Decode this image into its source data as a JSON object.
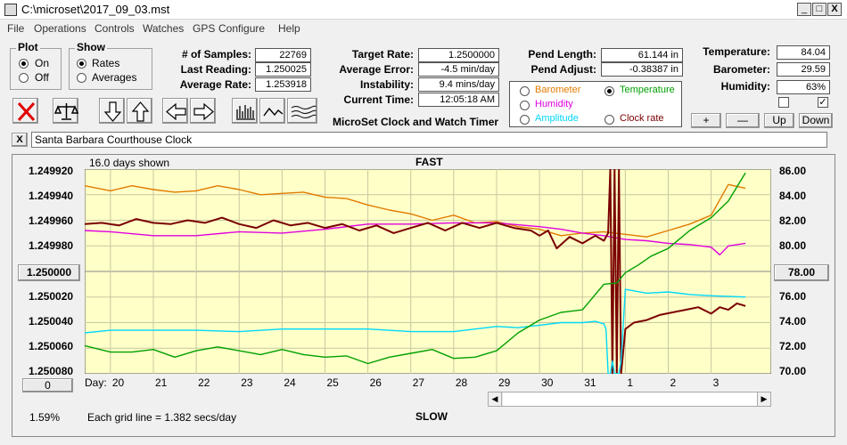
{
  "window": {
    "title": "C:\\microset\\2017_09_03.mst",
    "min": "_",
    "max": "□",
    "close": "X"
  },
  "menu": [
    "File",
    "Operations",
    "Controls",
    "Watches",
    "GPS",
    "Configure",
    "Help"
  ],
  "plot_group": {
    "title": "Plot",
    "options": [
      "On",
      "Off"
    ],
    "selected": "On"
  },
  "show_group": {
    "title": "Show",
    "options": [
      "Rates",
      "Averages"
    ],
    "selected": "Rates"
  },
  "stats_left": [
    {
      "label": "# of Samples:",
      "value": "22769"
    },
    {
      "label": "Last Reading:",
      "value": "1.250025"
    },
    {
      "label": "Average Rate:",
      "value": "1.253918"
    }
  ],
  "stats_mid": [
    {
      "label": "Target Rate:",
      "value": "1.2500000"
    },
    {
      "label": "Average Error:",
      "value": "-4.5 min/day"
    },
    {
      "label": "Instability:",
      "value": "9.4 mins/day"
    },
    {
      "label": "Current Time:",
      "value": "12:05:18 AM"
    }
  ],
  "pendulum": [
    {
      "label": "Pend Length:",
      "value": "61.144 in"
    },
    {
      "label": "Pend Adjust:",
      "value": "-0.38387 in"
    }
  ],
  "environment": [
    {
      "label": "Temperature:",
      "value": "84.04"
    },
    {
      "label": "Barometer:",
      "value": "29.59"
    },
    {
      "label": "Humidity:",
      "value": "63%"
    }
  ],
  "env_checks": [
    false,
    true
  ],
  "env_buttons": [
    "+",
    "—",
    "Up",
    "Down"
  ],
  "caption": "MicroSet Clock and Watch Timer",
  "legend": {
    "items": [
      {
        "label": "Barometer",
        "color": "#e07b00",
        "selected": false
      },
      {
        "label": "Temperature",
        "color": "#00a000",
        "selected": true
      },
      {
        "label": "Humidity",
        "color": "#e000e0",
        "selected": false
      },
      {
        "label": "Clock rate",
        "color": "#7a0000",
        "selected": false
      },
      {
        "label": "Amplitude",
        "color": "#00d8f8",
        "selected": false
      }
    ]
  },
  "toolbar_icons": [
    "stop-icon",
    "balance-scale-icon",
    "arrow-down-icon",
    "arrow-up-icon",
    "arrow-left-icon",
    "arrow-right-icon",
    "bar-graph-icon",
    "wave-icon",
    "multi-wave-icon"
  ],
  "clock_name": {
    "close": "X",
    "value": "Santa Barbara Courthouse Clock"
  },
  "chart_data": {
    "type": "line",
    "days_shown": "16.0 days shown",
    "top_label": "FAST",
    "bottom_label": "SLOW",
    "grid_note": "Each grid line = 1.382 secs/day",
    "left_button": "1.250000",
    "right_button": "78.00",
    "corner_button": "0",
    "percent": "1.59%",
    "x_title": "Day:",
    "x_labels": [
      "20",
      "21",
      "22",
      "23",
      "24",
      "25",
      "26",
      "27",
      "28",
      "29",
      "30",
      "31",
      "1",
      "2",
      "3"
    ],
    "y_left_labels": [
      "1.249920",
      "1.249940",
      "1.249960",
      "1.249980",
      "1.250020",
      "1.250040",
      "1.250060",
      "1.250080"
    ],
    "y_left_range": [
      1.24992,
      1.25008
    ],
    "y_right_labels": [
      "86.00",
      "84.00",
      "82.00",
      "80.00",
      "76.00",
      "74.00",
      "72.00",
      "70.00"
    ],
    "y_right_range": [
      70,
      86
    ],
    "x_range": [
      19.4,
      35.4
    ],
    "grid": true,
    "series": [
      {
        "name": "Barometer",
        "color": "#e07b00",
        "width": 1.4,
        "x": [
          19.4,
          20,
          20.5,
          21,
          21.5,
          22,
          22.5,
          23,
          23.5,
          24,
          24.5,
          25,
          25.5,
          26,
          26.5,
          27,
          27.5,
          28,
          28.5,
          29,
          29.5,
          30,
          30.5,
          31,
          31.5,
          32,
          32.5,
          33,
          33.5,
          34,
          34.4,
          34.8
        ],
        "y": [
          1.249933,
          1.249937,
          1.249933,
          1.249936,
          1.249938,
          1.249937,
          1.249933,
          1.249936,
          1.24994,
          1.249939,
          1.249938,
          1.249942,
          1.249943,
          1.249948,
          1.249952,
          1.249955,
          1.24996,
          1.249956,
          1.249962,
          1.249961,
          1.249965,
          1.249967,
          1.249972,
          1.24997,
          1.249969,
          1.249971,
          1.249973,
          1.249968,
          1.249963,
          1.249956,
          1.249932,
          1.249935
        ]
      },
      {
        "name": "Humidity",
        "color": "#e000e0",
        "width": 1.4,
        "x": [
          19.4,
          20,
          21,
          22,
          23,
          24,
          25,
          26,
          27,
          28,
          29,
          30,
          30.5,
          31,
          31.5,
          32,
          32.5,
          33,
          33.5,
          34,
          34.2,
          34.4,
          34.8
        ],
        "y": [
          1.249968,
          1.249969,
          1.249972,
          1.249972,
          1.249969,
          1.24997,
          1.249967,
          1.249963,
          1.249963,
          1.249962,
          1.249962,
          1.249965,
          1.249967,
          1.24997,
          1.249972,
          1.249975,
          1.249976,
          1.249978,
          1.249979,
          1.249981,
          1.249987,
          1.24998,
          1.249978
        ]
      },
      {
        "name": "Clock rate",
        "color": "#7a0000",
        "width": 2,
        "x": [
          19.4,
          19.8,
          20.2,
          20.6,
          21,
          21.4,
          21.8,
          22.2,
          22.6,
          23,
          23.4,
          23.8,
          24.2,
          24.6,
          25,
          25.4,
          25.8,
          26.2,
          26.6,
          27,
          27.4,
          27.8,
          28.2,
          28.6,
          29,
          29.4,
          29.8,
          30,
          30.2,
          30.4,
          30.7,
          31,
          31.3,
          31.5,
          31.6,
          31.65,
          31.7,
          31.75,
          31.8,
          31.85,
          31.9,
          32,
          32.2,
          32.5,
          32.8,
          33.1,
          33.4,
          33.7,
          34,
          34.2,
          34.4,
          34.6,
          34.8
        ],
        "y": [
          1.249963,
          1.249962,
          1.249964,
          1.249959,
          1.249962,
          1.249963,
          1.24996,
          1.249962,
          1.249958,
          1.249963,
          1.249966,
          1.24996,
          1.249964,
          1.249962,
          1.249966,
          1.249963,
          1.249968,
          1.249964,
          1.24997,
          1.249966,
          1.249962,
          1.249968,
          1.249962,
          1.249966,
          1.249962,
          1.249966,
          1.249968,
          1.249972,
          1.249968,
          1.249982,
          1.249973,
          1.249978,
          1.249972,
          1.249976,
          1.24997,
          1.24992,
          1.25008,
          1.24992,
          1.25008,
          1.24992,
          1.25008,
          1.250045,
          1.25004,
          1.250038,
          1.250034,
          1.250032,
          1.25003,
          1.250028,
          1.250033,
          1.250028,
          1.25003,
          1.250025,
          1.250027
        ]
      },
      {
        "name": "Amplitude",
        "color": "#00d8f8",
        "width": 1.4,
        "x": [
          19.4,
          20,
          21,
          22,
          23,
          24,
          25,
          26,
          27,
          28,
          29,
          29.5,
          30,
          30.5,
          31,
          31.3,
          31.5,
          31.55,
          31.6,
          31.65,
          31.7,
          31.75,
          31.85,
          31.9,
          32,
          32.5,
          33,
          33.5,
          34,
          34.8
        ],
        "y": [
          1.250048,
          1.250046,
          1.250046,
          1.250046,
          1.250047,
          1.250045,
          1.250045,
          1.250045,
          1.250047,
          1.250047,
          1.250043,
          1.250044,
          1.250042,
          1.25004,
          1.25004,
          1.250039,
          1.250041,
          1.250045,
          1.25008,
          1.25008,
          1.25007,
          1.25008,
          1.25008,
          1.25007,
          1.250014,
          1.250017,
          1.250016,
          1.250018,
          1.250019,
          1.25002
        ]
      },
      {
        "name": "Temperature",
        "color": "#00a000",
        "width": 1.4,
        "x": [
          19.4,
          20,
          20.5,
          21,
          21.5,
          22,
          22.5,
          23,
          23.5,
          24,
          24.5,
          25,
          25.5,
          26,
          26.5,
          27,
          27.5,
          28,
          28.5,
          29,
          29.5,
          30,
          30.5,
          31,
          31.5,
          31.8,
          32,
          32.3,
          32.6,
          33,
          33.5,
          34,
          34.4,
          34.8
        ],
        "y": [
          1.250058,
          1.250063,
          1.250063,
          1.250061,
          1.250067,
          1.250062,
          1.250059,
          1.250062,
          1.250065,
          1.250061,
          1.250065,
          1.250067,
          1.250066,
          1.250072,
          1.250067,
          1.250064,
          1.250061,
          1.250068,
          1.250067,
          1.250062,
          1.250048,
          1.250038,
          1.250032,
          1.25003,
          1.25001,
          1.250009,
          1.250001,
          1.249995,
          1.249988,
          1.249982,
          1.249968,
          1.249958,
          1.249945,
          1.249923
        ]
      }
    ]
  }
}
